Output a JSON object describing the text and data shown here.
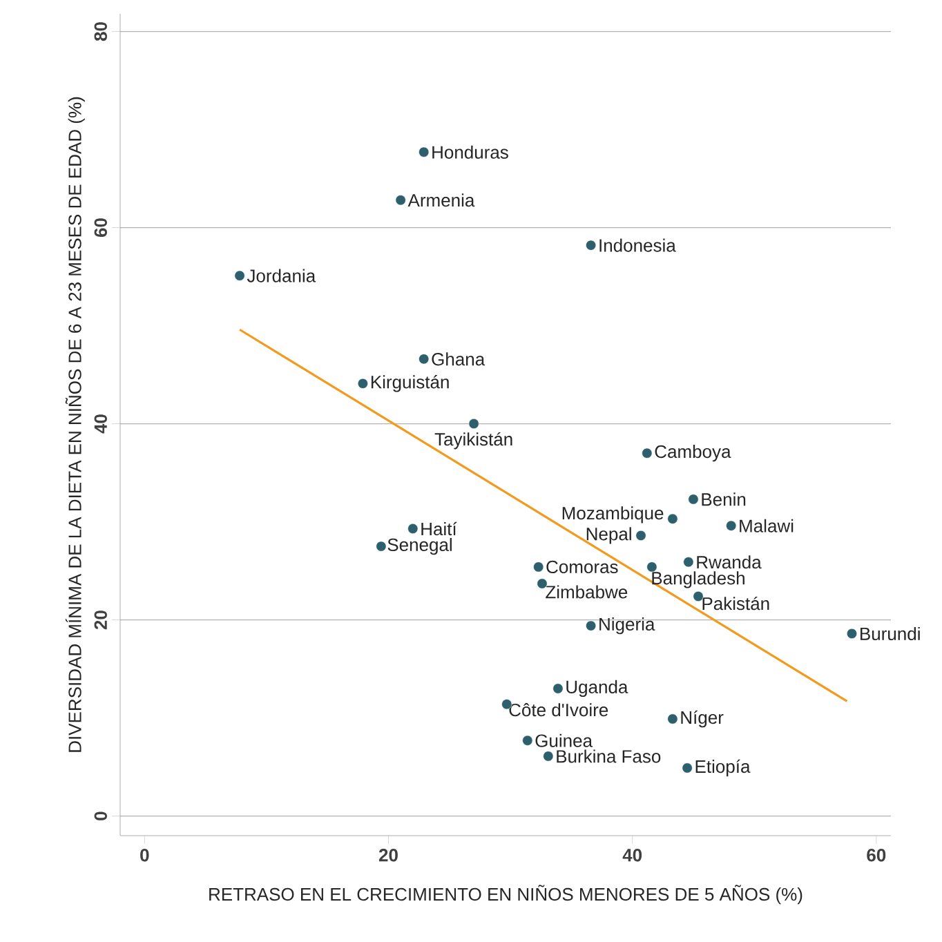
{
  "chart_data": {
    "type": "scatter",
    "xlabel": "RETRASO EN EL CRECIMIENTO EN NIÑOS MENORES DE 5 AÑOS (%)",
    "ylabel": "DIVERSIDAD MÍNIMA DE LA DIETA EN NIÑOS DE 6 A 23 MESES DE EDAD (%)",
    "xlim": [
      -2,
      61.2
    ],
    "ylim": [
      -2,
      81.8
    ],
    "xticks": [
      0,
      20,
      40,
      60
    ],
    "yticks": [
      0,
      20,
      40,
      60,
      80
    ],
    "grid": "y",
    "series": [
      {
        "color": "#2e5f6d",
        "marker": "circle",
        "x": [
          22.9,
          21.0,
          36.6,
          7.8,
          22.9,
          17.9,
          27.0,
          41.2,
          45.0,
          43.3,
          48.1,
          40.7,
          22.0,
          19.4,
          44.6,
          32.3,
          41.6,
          32.6,
          45.4,
          36.6,
          58.0,
          33.9,
          29.7,
          43.3,
          31.4,
          33.1,
          44.5
        ],
        "values": [
          67.7,
          62.8,
          58.2,
          55.1,
          46.6,
          44.1,
          40.0,
          37.0,
          32.3,
          30.3,
          29.6,
          28.6,
          29.3,
          27.5,
          25.9,
          25.4,
          25.4,
          23.7,
          22.4,
          19.4,
          18.6,
          13.0,
          11.4,
          9.9,
          7.7,
          6.1,
          4.9
        ]
      },
      {
        "type": "line",
        "color": "#f39a1e",
        "marker": "none",
        "x": [
          7.8,
          57.6
        ],
        "values": [
          49.6,
          11.7
        ]
      }
    ],
    "annotations": [
      {
        "text": "Honduras",
        "x": 22.9,
        "y": 67.7
      },
      {
        "text": "Armenia",
        "x": 21.0,
        "y": 62.8
      },
      {
        "text": "Indonesia",
        "x": 36.6,
        "y": 58.2
      },
      {
        "text": "Jordania",
        "x": 7.8,
        "y": 55.1
      },
      {
        "text": "Ghana",
        "x": 22.9,
        "y": 46.6
      },
      {
        "text": "Kirguistán",
        "x": 17.9,
        "y": 44.1
      },
      {
        "text": "Tayikistán",
        "x": 27.0,
        "y": 40.0
      },
      {
        "text": "Camboya",
        "x": 41.2,
        "y": 37.0
      },
      {
        "text": "Benin",
        "x": 45.0,
        "y": 32.3
      },
      {
        "text": "Mozambique",
        "x": 43.3,
        "y": 30.3
      },
      {
        "text": "Malawi",
        "x": 48.1,
        "y": 29.6
      },
      {
        "text": "Nepal",
        "x": 40.7,
        "y": 28.6
      },
      {
        "text": "Haití",
        "x": 22.0,
        "y": 29.3
      },
      {
        "text": "Senegal",
        "x": 19.4,
        "y": 27.5
      },
      {
        "text": "Rwanda",
        "x": 44.6,
        "y": 25.9
      },
      {
        "text": "Comoras",
        "x": 32.3,
        "y": 25.4
      },
      {
        "text": "Bangladesh",
        "x": 41.6,
        "y": 25.4
      },
      {
        "text": "Zimbabwe",
        "x": 32.6,
        "y": 23.7
      },
      {
        "text": "Pakistán",
        "x": 45.4,
        "y": 22.4
      },
      {
        "text": "Nigeria",
        "x": 36.6,
        "y": 19.4
      },
      {
        "text": "Burundi",
        "x": 58.0,
        "y": 18.6
      },
      {
        "text": "Uganda",
        "x": 33.9,
        "y": 13.0
      },
      {
        "text": "Côte d'Ivoire",
        "x": 29.7,
        "y": 11.4
      },
      {
        "text": "Níger",
        "x": 43.3,
        "y": 9.9
      },
      {
        "text": "Guinea",
        "x": 31.4,
        "y": 7.7
      },
      {
        "text": "Burkina Faso",
        "x": 33.1,
        "y": 6.1
      },
      {
        "text": "Etiopía",
        "x": 44.5,
        "y": 4.9
      }
    ]
  }
}
